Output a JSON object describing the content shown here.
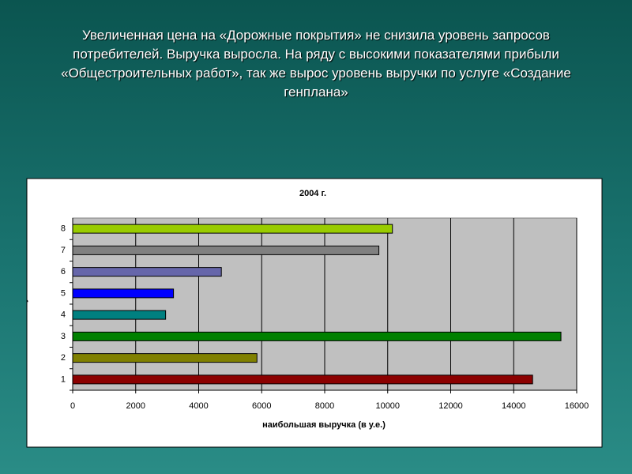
{
  "slide": {
    "heading": "Увеличенная цена на «Дорожные покрытия» не снизила уровень запросов потребителей. Выручка выросла. На ряду с высокими показателями прибыли «Общестроительных работ», так же вырос уровень выручки по услуге «Создание генплана»"
  },
  "chart_data": {
    "type": "barh",
    "title": "2004 г.",
    "x_label": "наибольшая выручка (в у.е.)",
    "y_label": "Услуга",
    "categories": [
      "1",
      "2",
      "3",
      "4",
      "5",
      "6",
      "7",
      "8"
    ],
    "values": [
      14600,
      5850,
      15500,
      2950,
      3200,
      4720,
      9720,
      10150
    ],
    "colors": [
      "#8b0000",
      "#808000",
      "#008000",
      "#008080",
      "#0000ff",
      "#6666aa",
      "#808080",
      "#99cc00"
    ],
    "xlim": [
      0,
      16000
    ],
    "xticks": [
      0,
      2000,
      4000,
      6000,
      8000,
      10000,
      12000,
      14000,
      16000
    ],
    "grid": true
  }
}
